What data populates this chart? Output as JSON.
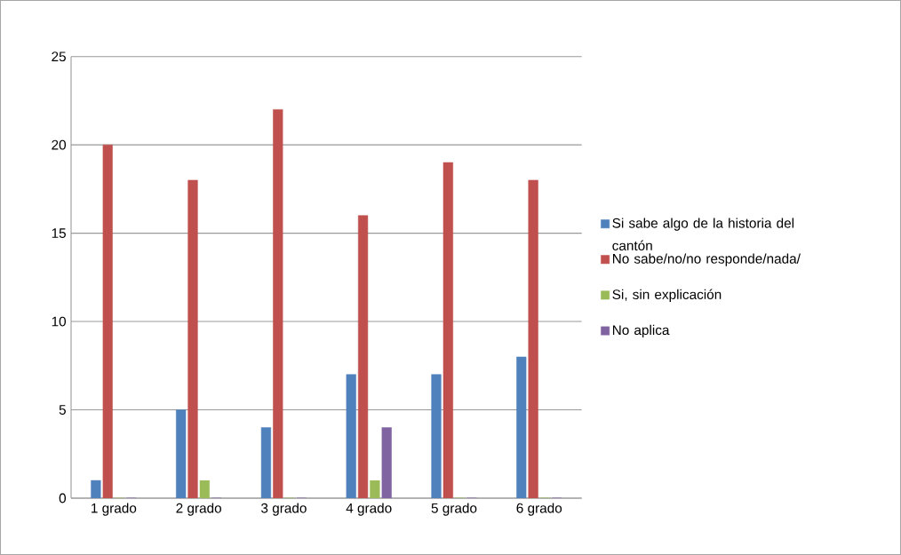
{
  "chart_data": {
    "type": "bar",
    "categories": [
      "1 grado",
      "2 grado",
      "3 grado",
      "4 grado",
      "5 grado",
      "6 grado"
    ],
    "series": [
      {
        "name": "Si  sabe algo de la historia del cantón",
        "color": "#4f81bd",
        "values": [
          1,
          5,
          4,
          7,
          7,
          8
        ]
      },
      {
        "name": "No  sabe/no/no responde/nada/",
        "color": "#c0504d",
        "values": [
          20,
          18,
          22,
          16,
          19,
          18
        ]
      },
      {
        "name": "Si, sin explicación",
        "color": "#9bbb59",
        "values": [
          0,
          1,
          0,
          1,
          0,
          0
        ]
      },
      {
        "name": "No aplica",
        "color": "#8064a2",
        "values": [
          0,
          0,
          0,
          4,
          0,
          0
        ]
      }
    ],
    "ylim": [
      0,
      25
    ],
    "yticks": [
      0,
      5,
      10,
      15,
      20,
      25
    ],
    "grid": "y",
    "legend": "right"
  }
}
